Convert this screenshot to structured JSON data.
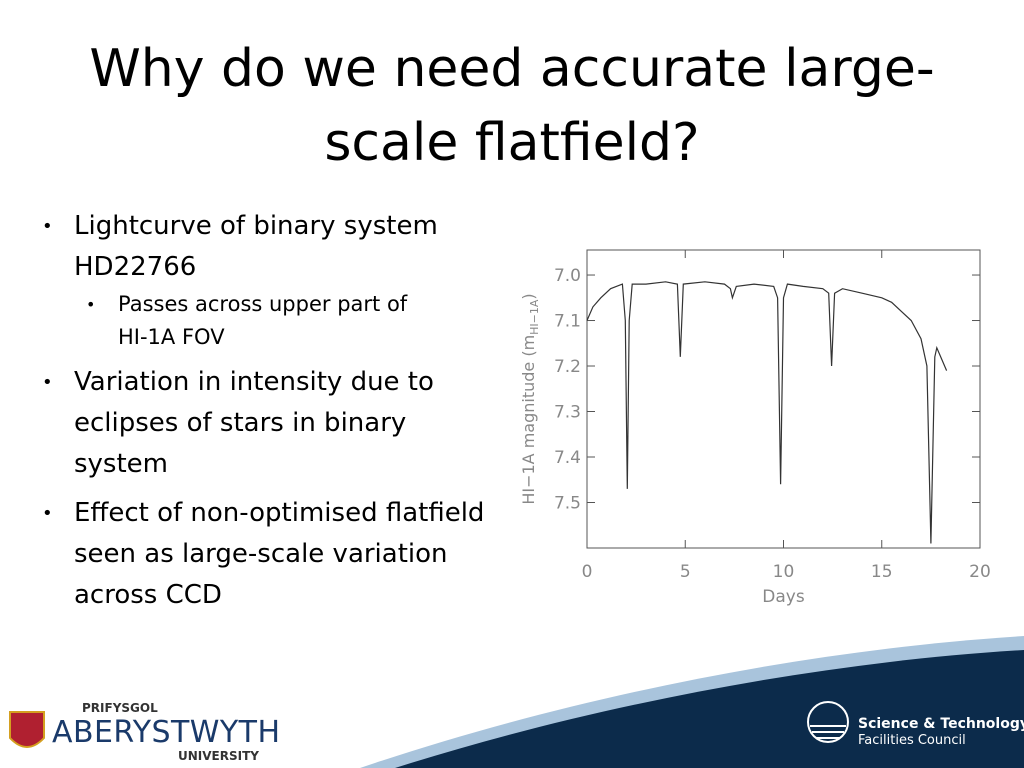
{
  "slide": {
    "title": "Why do we need accurate large-scale flatfield?",
    "bullets": [
      {
        "text": "Lightcurve of binary system HD22766",
        "sub": [
          "Passes across upper part of HI-1A FOV"
        ]
      },
      {
        "text": "Variation in intensity due to eclipses of stars in binary system"
      },
      {
        "text": "Effect of non-optimised flatfield seen as large-scale variation across CCD"
      }
    ],
    "logo_left": {
      "top": "PRIFYSGOL",
      "main": "ABERYSTWYTH",
      "bottom": "UNIVERSITY"
    },
    "logo_right": {
      "line1": "Science & Technology",
      "line2": "Facilities Council"
    }
  },
  "chart_data": {
    "type": "line",
    "x_label": "Days",
    "y_label": "HI−1A magnitude (m",
    "y_label_sub": "HI−1A",
    "y_label_end": ")",
    "x": [
      0,
      0.3,
      0.7,
      1.2,
      1.8,
      1.95,
      2.05,
      2.15,
      2.3,
      3.0,
      4.0,
      4.6,
      4.75,
      4.9,
      6,
      7,
      7.3,
      7.4,
      7.6,
      8.5,
      9.5,
      9.7,
      9.85,
      10.0,
      10.2,
      11,
      12,
      12.3,
      12.45,
      12.6,
      13,
      14,
      15,
      15.5,
      16,
      16.5,
      17,
      17.3,
      17.5,
      17.7,
      17.8,
      18.0,
      18.3
    ],
    "values": [
      7.1,
      7.07,
      7.05,
      7.03,
      7.02,
      7.1,
      7.47,
      7.1,
      7.02,
      7.02,
      7.015,
      7.02,
      7.18,
      7.02,
      7.015,
      7.02,
      7.03,
      7.05,
      7.025,
      7.02,
      7.025,
      7.05,
      7.46,
      7.05,
      7.02,
      7.025,
      7.03,
      7.04,
      7.2,
      7.04,
      7.03,
      7.04,
      7.05,
      7.06,
      7.08,
      7.1,
      7.14,
      7.2,
      7.59,
      7.18,
      7.16,
      7.18,
      7.21
    ],
    "color": "#333333",
    "xlim": [
      0,
      20
    ],
    "xticks": [
      0,
      5,
      10,
      15,
      20
    ],
    "ylim": [
      6.945,
      7.6
    ],
    "y_inverted": true,
    "yticks": [
      {
        "value": 7,
        "label": "7.0"
      },
      7.1,
      7.2,
      7.3,
      7.4,
      7.5
    ]
  }
}
